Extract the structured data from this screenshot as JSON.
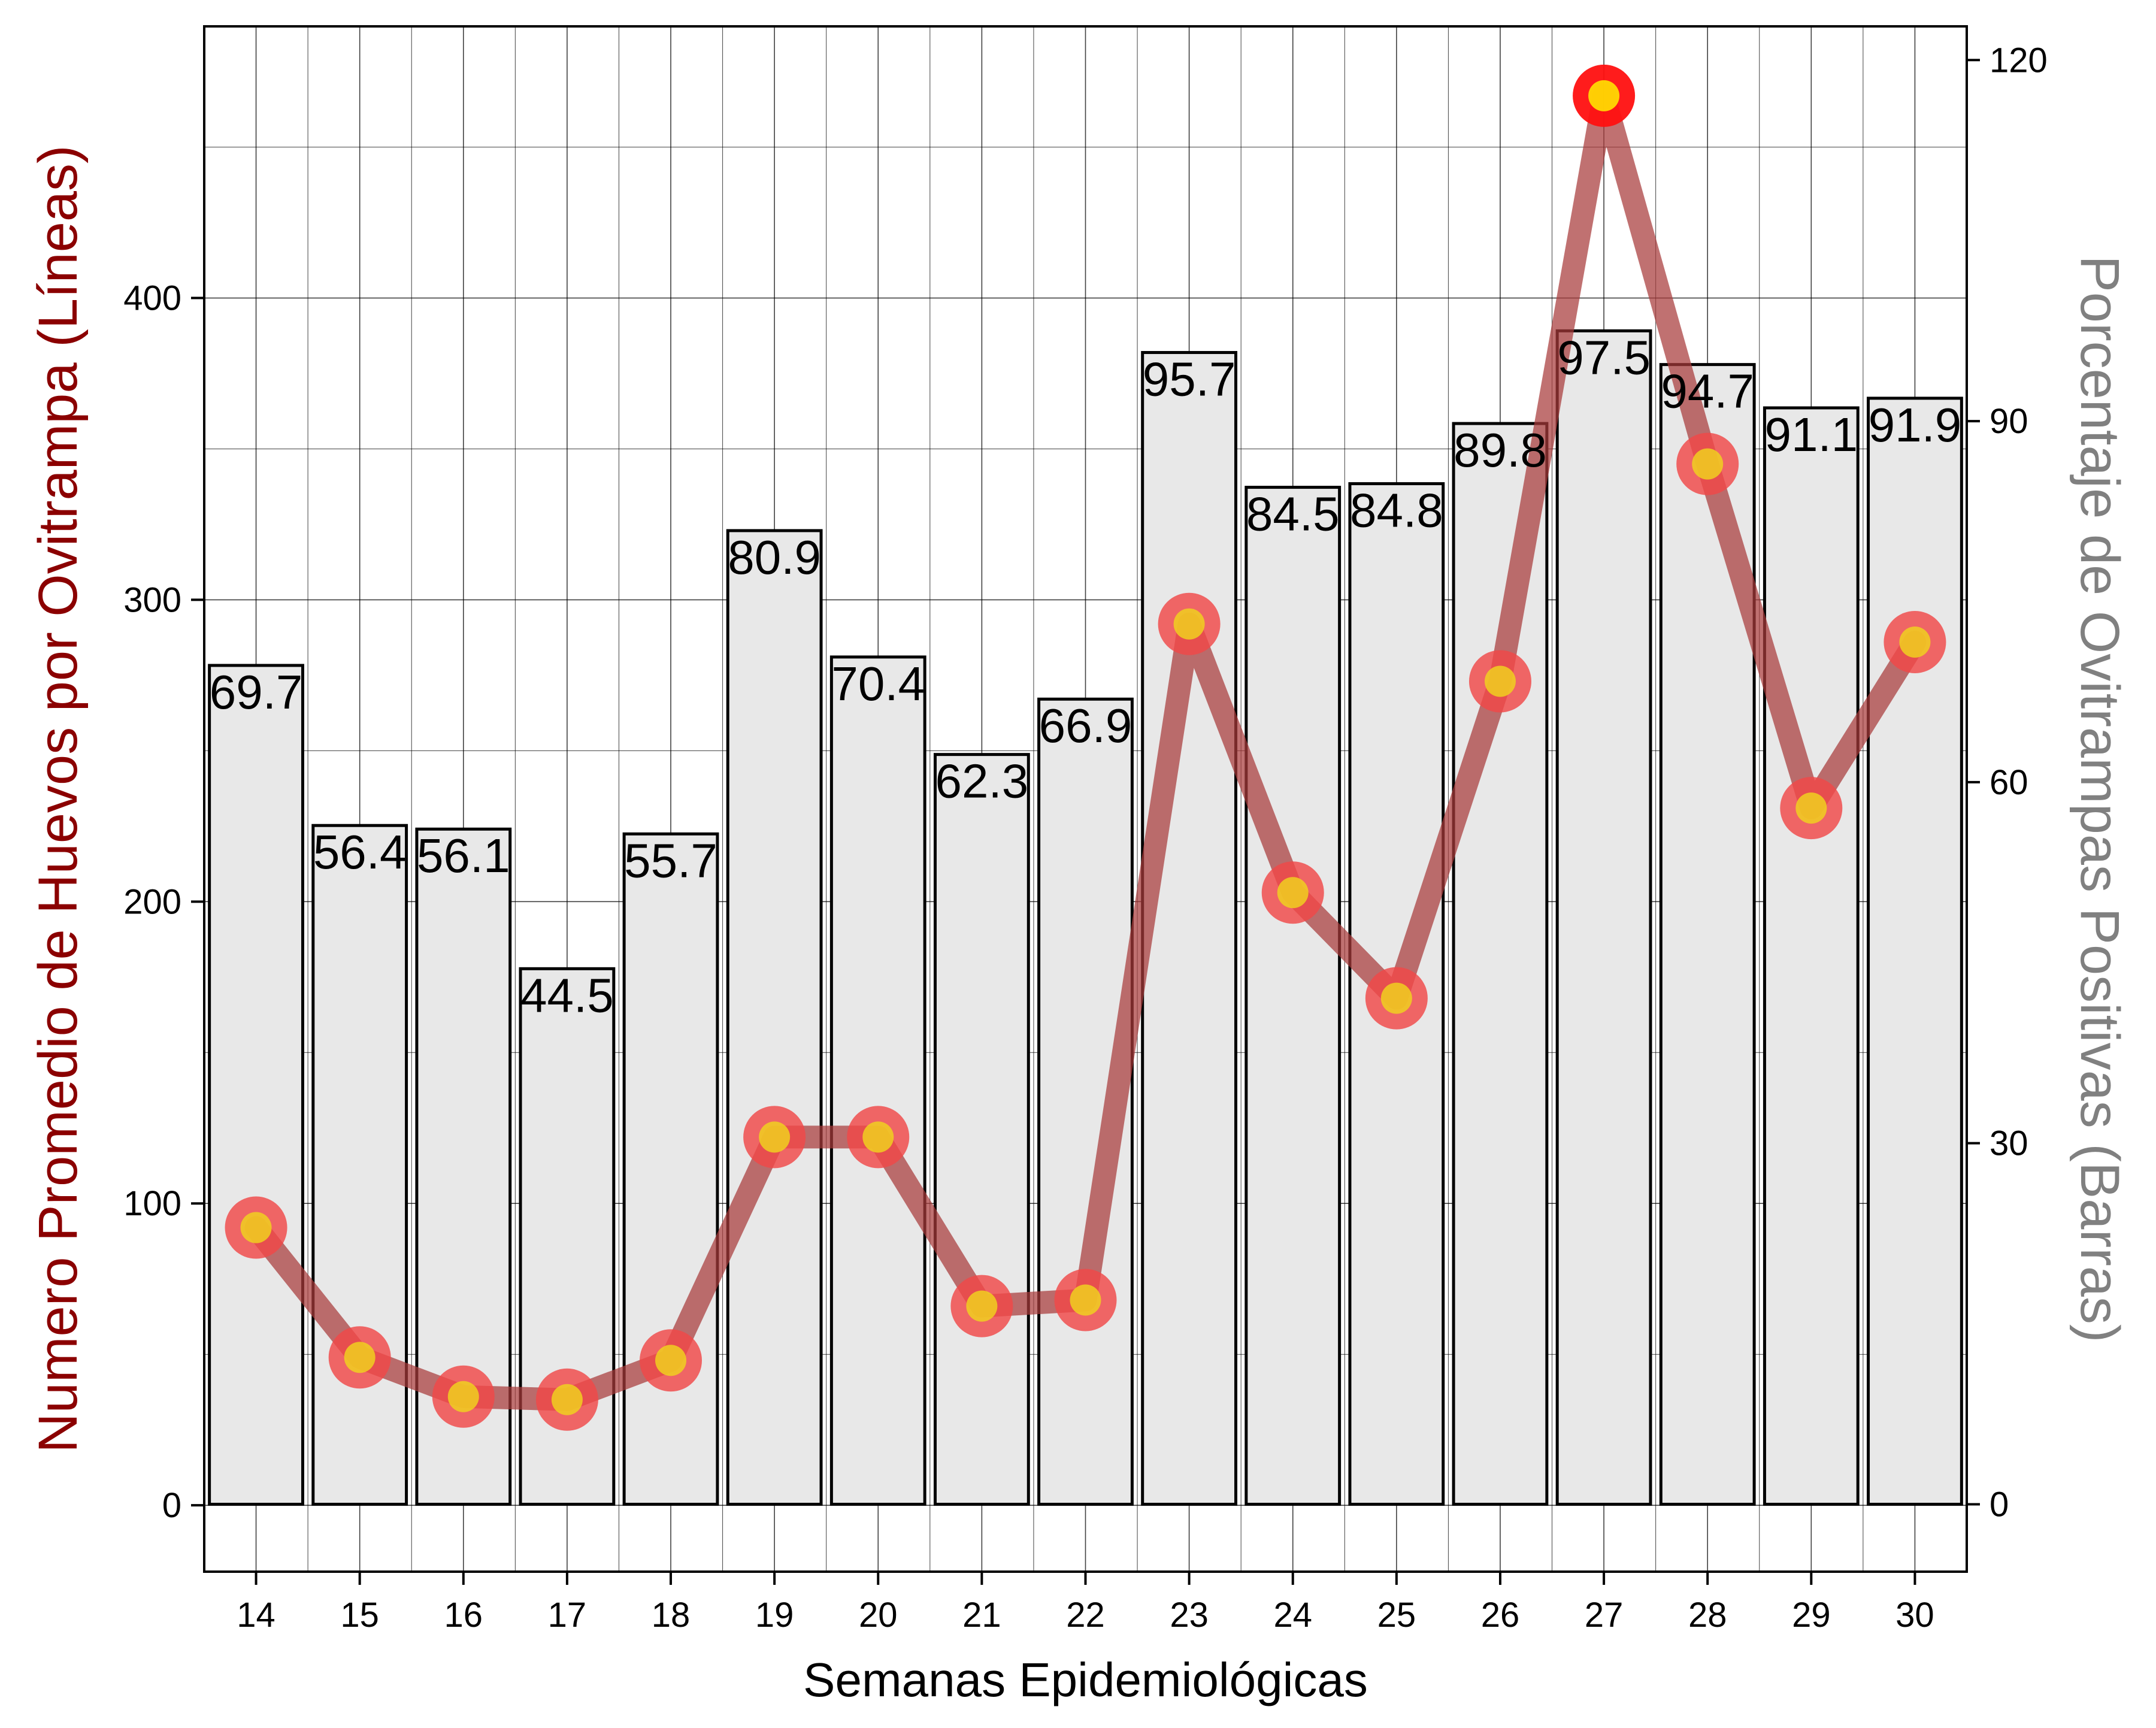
{
  "chart_data": {
    "type": "bar",
    "xlabel": "Semanas Epidemiológicas",
    "ylabel_left": "Numero Promedio de Huevos por Ovitrampa (Líneas)",
    "ylabel_right": "Porcentaje de Ovitrampas Positivas (Barras)",
    "categories": [
      "14",
      "15",
      "16",
      "17",
      "18",
      "19",
      "20",
      "21",
      "22",
      "23",
      "24",
      "25",
      "26",
      "27",
      "28",
      "29",
      "30"
    ],
    "bars": {
      "axis": "right",
      "values": [
        69.7,
        56.4,
        56.1,
        44.5,
        55.7,
        80.9,
        70.4,
        62.3,
        66.9,
        95.7,
        84.5,
        84.8,
        89.8,
        97.5,
        94.7,
        91.1,
        91.9
      ],
      "labels": [
        "69.7",
        "56.4",
        "56.1",
        "44.5",
        "55.7",
        "80.9",
        "70.4",
        "62.3",
        "66.9",
        "95.7",
        "84.5",
        "84.8",
        "89.8",
        "97.5",
        "94.7",
        "91.1",
        "91.9"
      ],
      "fill": "#e8e8e8",
      "stroke": "#000000"
    },
    "line": {
      "axis": "left",
      "values": [
        92,
        49,
        36,
        35,
        48,
        122,
        122,
        66,
        68,
        292,
        203,
        168,
        273,
        467,
        345,
        231,
        286
      ],
      "line_color": "#a83a3a",
      "marker_outer_color": "#f04848",
      "marker_inner_color": "#f0d020",
      "peak_outer_color": "#ff1010",
      "peak_inner_color": "#ffee00"
    },
    "left_axis": {
      "ylim": [
        -22,
        490
      ],
      "ticks": [
        0,
        100,
        200,
        300,
        400
      ],
      "tick_labels": [
        "0",
        "100",
        "200",
        "300",
        "400"
      ]
    },
    "right_axis": {
      "ylim": [
        -5.6,
        122.8
      ],
      "ticks": [
        0,
        30,
        60,
        90,
        120
      ],
      "tick_labels": [
        "0",
        "30",
        "60",
        "90",
        "120"
      ]
    },
    "grid": true,
    "colors": {
      "left_label": "#8b0000",
      "right_label": "#808080",
      "grid": "#000000"
    }
  }
}
